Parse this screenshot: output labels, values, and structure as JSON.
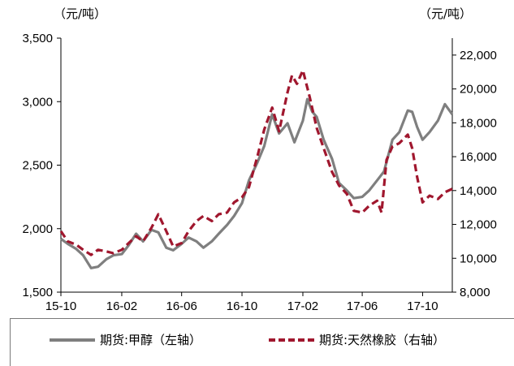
{
  "chart_data": {
    "type": "line",
    "title": "",
    "units": {
      "left": "（元/吨）",
      "right": "（元/吨）"
    },
    "x_ticks": [
      "15-10",
      "16-02",
      "16-06",
      "16-10",
      "17-02",
      "17-06",
      "17-10"
    ],
    "y_left": {
      "ticks": [
        "1,500",
        "2,000",
        "2,500",
        "3,000",
        "3,500"
      ],
      "ylim": [
        1500,
        3500
      ]
    },
    "y_right": {
      "ticks": [
        "8,000",
        "10,000",
        "12,000",
        "14,000",
        "16,000",
        "18,000",
        "20,000",
        "22,000"
      ],
      "ylim": [
        8000,
        23000
      ]
    },
    "x_range": [
      "2015-10-01",
      "2017-11-30"
    ],
    "grid": false,
    "legend": "bottom",
    "series": [
      {
        "name": "期货:甲醇（左轴）",
        "axis": "left",
        "color": "#7f7f7f",
        "dash": "solid",
        "points": [
          [
            "2015-10-01",
            1920
          ],
          [
            "2015-10-15",
            1880
          ],
          [
            "2015-11-01",
            1840
          ],
          [
            "2015-11-15",
            1790
          ],
          [
            "2015-12-01",
            1690
          ],
          [
            "2015-12-15",
            1700
          ],
          [
            "2016-01-01",
            1760
          ],
          [
            "2016-01-15",
            1790
          ],
          [
            "2016-02-01",
            1800
          ],
          [
            "2016-02-15",
            1870
          ],
          [
            "2016-03-01",
            1960
          ],
          [
            "2016-03-15",
            1900
          ],
          [
            "2016-04-01",
            1990
          ],
          [
            "2016-04-15",
            1970
          ],
          [
            "2016-05-01",
            1850
          ],
          [
            "2016-05-15",
            1830
          ],
          [
            "2016-06-01",
            1880
          ],
          [
            "2016-06-15",
            1930
          ],
          [
            "2016-07-01",
            1900
          ],
          [
            "2016-07-15",
            1850
          ],
          [
            "2016-08-01",
            1900
          ],
          [
            "2016-08-15",
            1960
          ],
          [
            "2016-09-01",
            2030
          ],
          [
            "2016-09-15",
            2100
          ],
          [
            "2016-10-01",
            2200
          ],
          [
            "2016-10-15",
            2380
          ],
          [
            "2016-11-01",
            2520
          ],
          [
            "2016-11-15",
            2650
          ],
          [
            "2016-12-01",
            2900
          ],
          [
            "2016-12-15",
            2750
          ],
          [
            "2017-01-01",
            2830
          ],
          [
            "2017-01-15",
            2680
          ],
          [
            "2017-02-01",
            2850
          ],
          [
            "2017-02-10",
            3020
          ],
          [
            "2017-02-20",
            2920
          ],
          [
            "2017-03-01",
            2880
          ],
          [
            "2017-03-15",
            2700
          ],
          [
            "2017-04-01",
            2550
          ],
          [
            "2017-04-15",
            2360
          ],
          [
            "2017-05-01",
            2300
          ],
          [
            "2017-05-15",
            2240
          ],
          [
            "2017-06-01",
            2250
          ],
          [
            "2017-06-15",
            2300
          ],
          [
            "2017-07-01",
            2380
          ],
          [
            "2017-07-15",
            2450
          ],
          [
            "2017-08-01",
            2700
          ],
          [
            "2017-08-15",
            2760
          ],
          [
            "2017-09-01",
            2930
          ],
          [
            "2017-09-10",
            2920
          ],
          [
            "2017-09-20",
            2800
          ],
          [
            "2017-10-01",
            2700
          ],
          [
            "2017-10-15",
            2760
          ],
          [
            "2017-11-01",
            2850
          ],
          [
            "2017-11-15",
            2980
          ],
          [
            "2017-11-30",
            2900
          ]
        ]
      },
      {
        "name": "期货:天然橡胶（右轴）",
        "axis": "right",
        "color": "#a0172e",
        "dash": "dashed",
        "points": [
          [
            "2015-10-01",
            11600
          ],
          [
            "2015-10-15",
            11000
          ],
          [
            "2015-11-01",
            10800
          ],
          [
            "2015-11-15",
            10500
          ],
          [
            "2015-12-01",
            10200
          ],
          [
            "2015-12-15",
            10500
          ],
          [
            "2016-01-01",
            10400
          ],
          [
            "2016-01-15",
            10300
          ],
          [
            "2016-02-01",
            10500
          ],
          [
            "2016-02-15",
            10900
          ],
          [
            "2016-03-01",
            11300
          ],
          [
            "2016-03-15",
            11000
          ],
          [
            "2016-04-01",
            11800
          ],
          [
            "2016-04-15",
            12600
          ],
          [
            "2016-05-01",
            11600
          ],
          [
            "2016-05-15",
            10700
          ],
          [
            "2016-06-01",
            10900
          ],
          [
            "2016-06-15",
            11600
          ],
          [
            "2016-07-01",
            12200
          ],
          [
            "2016-07-15",
            12500
          ],
          [
            "2016-08-01",
            12200
          ],
          [
            "2016-08-15",
            12600
          ],
          [
            "2016-09-01",
            12700
          ],
          [
            "2016-09-15",
            13300
          ],
          [
            "2016-10-01",
            13600
          ],
          [
            "2016-10-15",
            14200
          ],
          [
            "2016-11-01",
            16000
          ],
          [
            "2016-11-15",
            17600
          ],
          [
            "2016-12-01",
            18900
          ],
          [
            "2016-12-15",
            17500
          ],
          [
            "2017-01-01",
            19800
          ],
          [
            "2017-01-10",
            20800
          ],
          [
            "2017-01-20",
            20300
          ],
          [
            "2017-02-01",
            21100
          ],
          [
            "2017-02-15",
            19500
          ],
          [
            "2017-03-01",
            17700
          ],
          [
            "2017-03-15",
            16500
          ],
          [
            "2017-04-01",
            15100
          ],
          [
            "2017-04-15",
            14300
          ],
          [
            "2017-05-01",
            13800
          ],
          [
            "2017-05-15",
            12800
          ],
          [
            "2017-06-01",
            12700
          ],
          [
            "2017-06-15",
            13100
          ],
          [
            "2017-07-01",
            13400
          ],
          [
            "2017-07-10",
            12700
          ],
          [
            "2017-07-20",
            15800
          ],
          [
            "2017-08-01",
            16600
          ],
          [
            "2017-08-15",
            16800
          ],
          [
            "2017-09-01",
            17300
          ],
          [
            "2017-09-10",
            16500
          ],
          [
            "2017-09-20",
            14800
          ],
          [
            "2017-10-01",
            13300
          ],
          [
            "2017-10-15",
            13700
          ],
          [
            "2017-11-01",
            13500
          ],
          [
            "2017-11-15",
            13900
          ],
          [
            "2017-11-30",
            14100
          ]
        ]
      }
    ]
  }
}
